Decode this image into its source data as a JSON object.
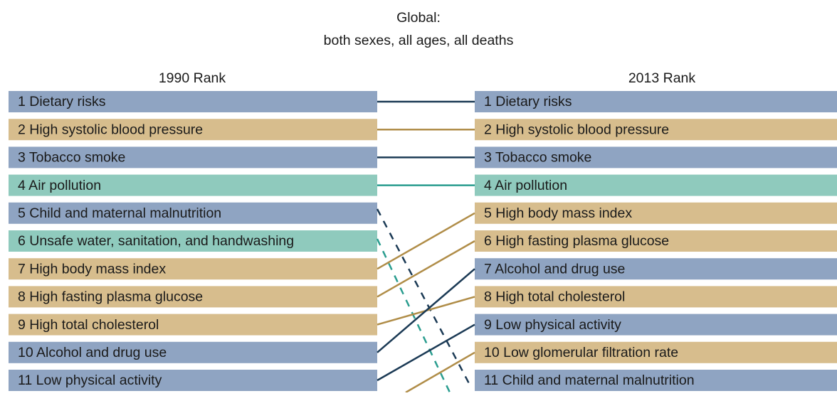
{
  "header": {
    "title": "Global:",
    "subtitle": "both sexes, all ages, all deaths"
  },
  "left": {
    "heading": "1990 Rank",
    "items": [
      "1 Dietary risks",
      "2 High systolic blood pressure",
      "3 Tobacco smoke",
      "4 Air pollution",
      "5 Child and maternal malnutrition",
      "6 Unsafe water, sanitation, and handwashing",
      "7 High body mass index",
      "8 High fasting plasma glucose",
      "9 High total cholesterol",
      "10 Alcohol and drug use",
      "11 Low physical activity"
    ]
  },
  "right": {
    "heading": "2013 Rank",
    "items": [
      "1 Dietary risks",
      "2 High systolic blood pressure",
      "3 Tobacco smoke",
      "4 Air pollution",
      "5 High body mass index",
      "6 High fasting plasma glucose",
      "7 Alcohol and drug use",
      "8 High total cholesterol",
      "9 Low physical activity",
      "10 Low glomerular filtration rate",
      "11 Child and maternal malnutrition"
    ]
  }
}
